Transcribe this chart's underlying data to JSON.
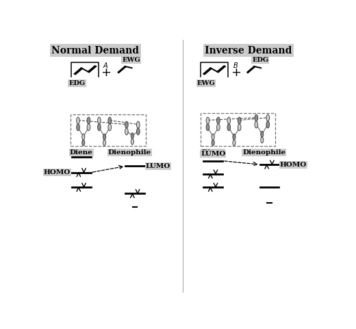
{
  "title_left": "Normal Demand",
  "title_right": "Inverse Demand",
  "bg_color": "#ffffff",
  "text_color": "#000000",
  "edg_label": "EDG",
  "ewg_label": "EWG",
  "diene_label": "Diene",
  "dienophile_label": "Dienophile",
  "homo_label": "HOMO",
  "lumo_label": "LUMO",
  "label_a": "A",
  "label_b": "B"
}
